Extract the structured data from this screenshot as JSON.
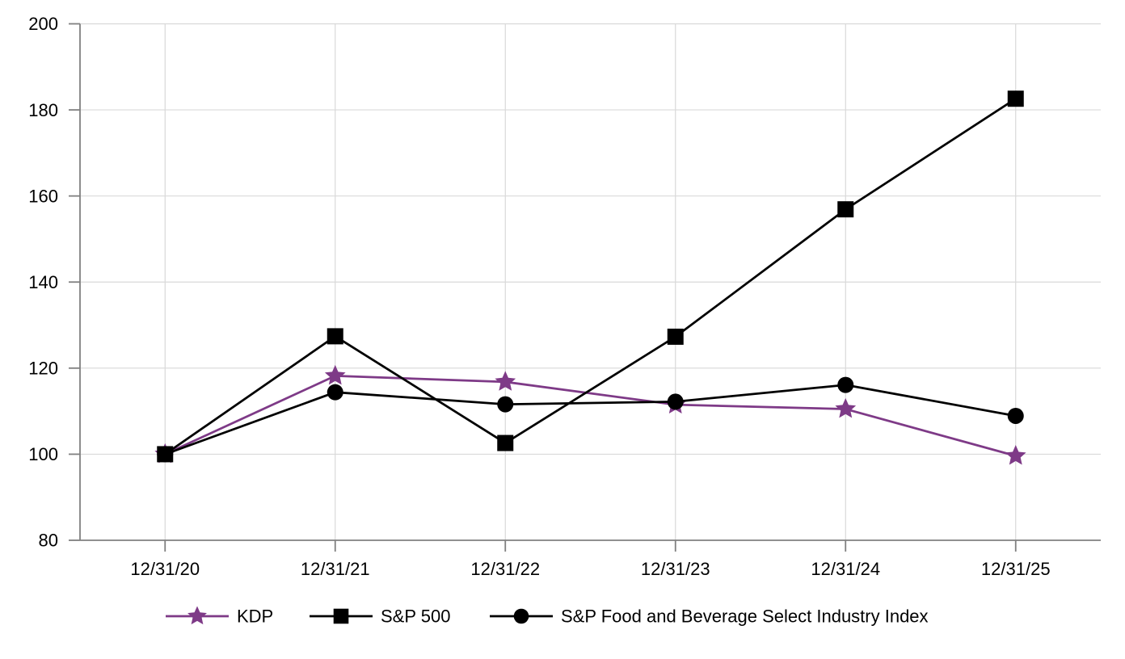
{
  "chart_data": {
    "type": "line",
    "title": "",
    "categories": [
      "12/31/20",
      "12/31/21",
      "12/31/22",
      "12/31/23",
      "12/31/24",
      "12/31/25"
    ],
    "series": [
      {
        "name": "KDP",
        "color": "#7E3A87",
        "marker": "star",
        "values": [
          100,
          118.2,
          116.8,
          111.5,
          110.5,
          99.6
        ]
      },
      {
        "name": "S&P 500",
        "color": "#000000",
        "marker": "square",
        "values": [
          100,
          127.4,
          102.6,
          127.3,
          156.9,
          182.6
        ]
      },
      {
        "name": "S&P Food and Beverage Select Industry Index",
        "color": "#000000",
        "marker": "circle",
        "values": [
          100,
          114.4,
          111.6,
          112.2,
          116.1,
          108.9
        ]
      }
    ],
    "xlabel": "",
    "ylabel": "",
    "ylim": [
      80,
      200
    ],
    "yticks": [
      80,
      100,
      120,
      140,
      160,
      180,
      200
    ],
    "grid": true,
    "legend_position": "bottom",
    "colors": {
      "grid": "#D9D9D9",
      "axis": "#808080",
      "text": "#000000",
      "background": "#FFFFFF"
    }
  }
}
